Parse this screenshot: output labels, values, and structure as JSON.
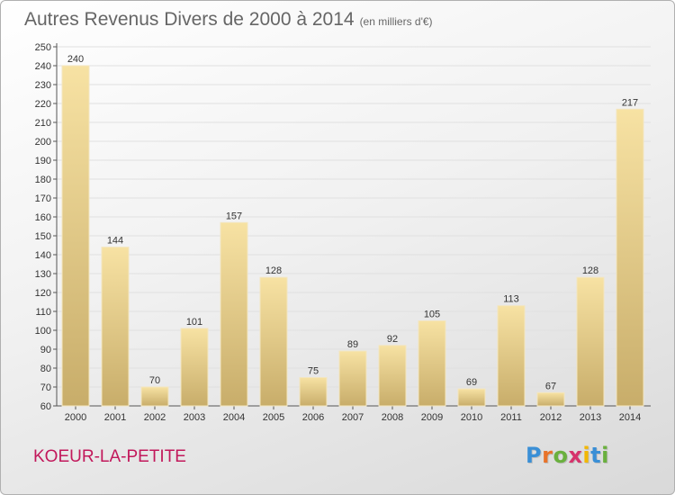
{
  "title": "Autres Revenus Divers de 2000 à 2014",
  "subtitle": "(en milliers d'€)",
  "commune": "KOEUR-LA-PETITE",
  "logo": {
    "letters": [
      "P",
      "r",
      "o",
      "x",
      "i",
      "t",
      "i"
    ],
    "colors": [
      "#3a8fd6",
      "#e8732a",
      "#6ab03e",
      "#d6336c",
      "#f2b705",
      "#3a8fd6",
      "#6ab03e"
    ]
  },
  "colors": {
    "bar_light": "#f7e2a3",
    "bar_dark": "#c8ad6a",
    "grid": "#e0e0e0",
    "commune": "#c2185b"
  },
  "chart_data": {
    "type": "bar",
    "categories": [
      "2000",
      "2001",
      "2002",
      "2003",
      "2004",
      "2005",
      "2006",
      "2007",
      "2008",
      "2009",
      "2010",
      "2011",
      "2012",
      "2013",
      "2014"
    ],
    "values": [
      240,
      144,
      70,
      101,
      157,
      128,
      75,
      89,
      92,
      105,
      69,
      113,
      67,
      128,
      217
    ],
    "title": "Autres Revenus Divers de 2000 à 2014",
    "subtitle": "(en milliers d'€)",
    "ylim": [
      60,
      250
    ],
    "yticks": [
      60,
      70,
      80,
      90,
      100,
      110,
      120,
      130,
      140,
      150,
      160,
      170,
      180,
      190,
      200,
      210,
      220,
      230,
      240,
      250
    ],
    "grid": true,
    "legend": "none"
  }
}
